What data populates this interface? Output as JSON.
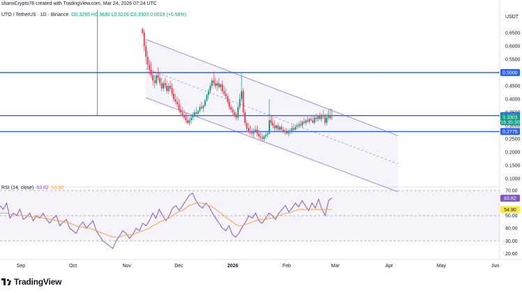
{
  "header": {
    "author_line": "shamiCrypto78 created with TradingView.com, Mar 24, 2026 07:24 UTC",
    "symbol": "UTO / TetherUS · 1D · Binance",
    "ohlc": "O0.3285  H0.3630  L0.3226  C0.3303  0.0019 (+0.58%)"
  },
  "rsi_label": {
    "name": "RSI (14, close)",
    "rsi_value": "63.82",
    "ma_value": "54.90"
  },
  "brand": {
    "name": "TradingView"
  },
  "colors": {
    "up": "#089981",
    "down": "#f23645",
    "hline": "#2962ff",
    "channel": "#9c8fd8",
    "rsi": "#7e57c2",
    "rsi_ma": "#f2a541"
  },
  "chart_data": [
    {
      "type": "candlestick",
      "title": "",
      "price_axis": {
        "unit": "USDT",
        "ticks": [
          "0.6500",
          "0.6000",
          "0.5500",
          "0.4500",
          "0.4000",
          "0.3500",
          "0.3000",
          "0.2500",
          "0.2000",
          "0.1500",
          "0.1000"
        ]
      },
      "time_axis": {
        "ticks": [
          "Sep",
          "Oct",
          "Nov",
          "Dec",
          "2026",
          "Feb",
          "Mar",
          "Apr",
          "May",
          "Jun"
        ]
      },
      "horizontal_levels": [
        {
          "price": 0.5,
          "label": "0.5000"
        },
        {
          "price": 0.3376,
          "label": "0.3376"
        },
        {
          "price": 0.2775,
          "label": "0.2775"
        }
      ],
      "last_price": {
        "value": "0.3303",
        "countdown": "16:35:30"
      },
      "descending_channel": {
        "upper": [
          [
            "2025-11-12",
            0.625
          ],
          [
            "2026-04-06",
            0.262
          ]
        ],
        "lower": [
          [
            "2025-11-12",
            0.405
          ],
          [
            "2026-04-06",
            0.05
          ]
        ]
      },
      "ohlc": [
        [
          "2025-11-10",
          0.665,
          0.67,
          0.64,
          0.65
        ],
        [
          "2025-11-11",
          0.65,
          0.66,
          0.58,
          0.6
        ],
        [
          "2025-11-12",
          0.6,
          0.62,
          0.53,
          0.56
        ],
        [
          "2025-11-13",
          0.56,
          0.58,
          0.51,
          0.53
        ],
        [
          "2025-11-14",
          0.53,
          0.55,
          0.49,
          0.51
        ],
        [
          "2025-11-15",
          0.51,
          0.54,
          0.48,
          0.49
        ],
        [
          "2025-11-16",
          0.49,
          0.51,
          0.45,
          0.47
        ],
        [
          "2025-11-17",
          0.47,
          0.49,
          0.44,
          0.46
        ],
        [
          "2025-11-18",
          0.46,
          0.5,
          0.45,
          0.49
        ],
        [
          "2025-11-19",
          0.49,
          0.52,
          0.47,
          0.48
        ],
        [
          "2025-11-20",
          0.48,
          0.5,
          0.45,
          0.46
        ],
        [
          "2025-11-21",
          0.46,
          0.48,
          0.43,
          0.44
        ],
        [
          "2025-11-22",
          0.44,
          0.47,
          0.43,
          0.46
        ],
        [
          "2025-11-23",
          0.46,
          0.48,
          0.44,
          0.45
        ],
        [
          "2025-11-24",
          0.45,
          0.47,
          0.42,
          0.43
        ],
        [
          "2025-11-25",
          0.43,
          0.46,
          0.42,
          0.45
        ],
        [
          "2025-11-26",
          0.45,
          0.47,
          0.43,
          0.44
        ],
        [
          "2025-11-27",
          0.44,
          0.46,
          0.41,
          0.42
        ],
        [
          "2025-11-28",
          0.42,
          0.44,
          0.39,
          0.4
        ],
        [
          "2025-11-29",
          0.4,
          0.42,
          0.38,
          0.39
        ],
        [
          "2025-11-30",
          0.39,
          0.41,
          0.37,
          0.38
        ],
        [
          "2025-12-01",
          0.38,
          0.4,
          0.35,
          0.36
        ],
        [
          "2025-12-02",
          0.36,
          0.38,
          0.34,
          0.35
        ],
        [
          "2025-12-03",
          0.35,
          0.37,
          0.33,
          0.34
        ],
        [
          "2025-12-04",
          0.34,
          0.36,
          0.32,
          0.33
        ],
        [
          "2025-12-05",
          0.33,
          0.35,
          0.31,
          0.32
        ],
        [
          "2025-12-06",
          0.32,
          0.34,
          0.305,
          0.31
        ],
        [
          "2025-12-07",
          0.31,
          0.33,
          0.3,
          0.32
        ],
        [
          "2025-12-08",
          0.32,
          0.34,
          0.305,
          0.33
        ],
        [
          "2025-12-09",
          0.33,
          0.35,
          0.32,
          0.34
        ],
        [
          "2025-12-10",
          0.34,
          0.36,
          0.33,
          0.35
        ],
        [
          "2025-12-11",
          0.35,
          0.37,
          0.34,
          0.345
        ],
        [
          "2025-12-12",
          0.345,
          0.36,
          0.33,
          0.355
        ],
        [
          "2025-12-13",
          0.355,
          0.38,
          0.35,
          0.37
        ],
        [
          "2025-12-14",
          0.37,
          0.39,
          0.36,
          0.365
        ],
        [
          "2025-12-15",
          0.365,
          0.38,
          0.35,
          0.375
        ],
        [
          "2025-12-16",
          0.375,
          0.4,
          0.37,
          0.395
        ],
        [
          "2025-12-17",
          0.395,
          0.42,
          0.39,
          0.415
        ],
        [
          "2025-12-18",
          0.415,
          0.44,
          0.4,
          0.43
        ],
        [
          "2025-12-19",
          0.43,
          0.46,
          0.42,
          0.45
        ],
        [
          "2025-12-20",
          0.45,
          0.48,
          0.44,
          0.47
        ],
        [
          "2025-12-21",
          0.47,
          0.5,
          0.45,
          0.46
        ],
        [
          "2025-12-22",
          0.46,
          0.48,
          0.44,
          0.45
        ],
        [
          "2025-12-23",
          0.45,
          0.47,
          0.43,
          0.46
        ],
        [
          "2025-12-24",
          0.46,
          0.48,
          0.44,
          0.445
        ],
        [
          "2025-12-25",
          0.445,
          0.46,
          0.43,
          0.455
        ],
        [
          "2025-12-26",
          0.455,
          0.47,
          0.42,
          0.43
        ],
        [
          "2025-12-27",
          0.43,
          0.45,
          0.41,
          0.42
        ],
        [
          "2025-12-28",
          0.42,
          0.44,
          0.4,
          0.41
        ],
        [
          "2025-12-29",
          0.41,
          0.42,
          0.38,
          0.39
        ],
        [
          "2025-12-30",
          0.39,
          0.4,
          0.36,
          0.37
        ],
        [
          "2025-12-31",
          0.37,
          0.38,
          0.35,
          0.36
        ],
        [
          "2026-01-01",
          0.36,
          0.37,
          0.34,
          0.35
        ],
        [
          "2026-01-02",
          0.35,
          0.36,
          0.33,
          0.335
        ],
        [
          "2026-01-03",
          0.335,
          0.35,
          0.32,
          0.33
        ],
        [
          "2026-01-04",
          0.33,
          0.38,
          0.32,
          0.37
        ],
        [
          "2026-01-05",
          0.37,
          0.42,
          0.36,
          0.4
        ],
        [
          "2026-01-06",
          0.4,
          0.5,
          0.39,
          0.43
        ],
        [
          "2026-01-07",
          0.43,
          0.44,
          0.34,
          0.35
        ],
        [
          "2026-01-08",
          0.35,
          0.36,
          0.3,
          0.31
        ],
        [
          "2026-01-09",
          0.31,
          0.32,
          0.28,
          0.29
        ],
        [
          "2026-01-10",
          0.29,
          0.31,
          0.27,
          0.28
        ],
        [
          "2026-01-11",
          0.28,
          0.3,
          0.265,
          0.275
        ],
        [
          "2026-01-12",
          0.275,
          0.29,
          0.26,
          0.27
        ],
        [
          "2026-01-13",
          0.27,
          0.29,
          0.255,
          0.28
        ],
        [
          "2026-01-14",
          0.28,
          0.3,
          0.27,
          0.285
        ],
        [
          "2026-01-15",
          0.285,
          0.3,
          0.26,
          0.27
        ],
        [
          "2026-01-16",
          0.27,
          0.285,
          0.25,
          0.26
        ],
        [
          "2026-01-17",
          0.26,
          0.275,
          0.245,
          0.255
        ],
        [
          "2026-01-18",
          0.255,
          0.27,
          0.24,
          0.25
        ],
        [
          "2026-01-19",
          0.25,
          0.265,
          0.24,
          0.26
        ],
        [
          "2026-01-20",
          0.26,
          0.275,
          0.25,
          0.265
        ],
        [
          "2026-01-21",
          0.265,
          0.28,
          0.255,
          0.27
        ],
        [
          "2026-01-22",
          0.27,
          0.4,
          0.265,
          0.32
        ],
        [
          "2026-01-23",
          0.32,
          0.34,
          0.3,
          0.31
        ],
        [
          "2026-01-24",
          0.31,
          0.33,
          0.29,
          0.3
        ],
        [
          "2026-01-25",
          0.3,
          0.32,
          0.28,
          0.29
        ],
        [
          "2026-01-26",
          0.29,
          0.305,
          0.275,
          0.3
        ],
        [
          "2026-01-27",
          0.3,
          0.31,
          0.28,
          0.285
        ],
        [
          "2026-01-28",
          0.285,
          0.3,
          0.275,
          0.295
        ],
        [
          "2026-01-29",
          0.295,
          0.305,
          0.28,
          0.285
        ],
        [
          "2026-01-30",
          0.285,
          0.295,
          0.27,
          0.275
        ],
        [
          "2026-01-31",
          0.275,
          0.29,
          0.265,
          0.28
        ],
        [
          "2026-02-01",
          0.28,
          0.29,
          0.265,
          0.27
        ],
        [
          "2026-02-02",
          0.27,
          0.285,
          0.26,
          0.275
        ],
        [
          "2026-02-03",
          0.275,
          0.29,
          0.265,
          0.28
        ],
        [
          "2026-02-04",
          0.28,
          0.3,
          0.27,
          0.29
        ],
        [
          "2026-02-05",
          0.29,
          0.305,
          0.275,
          0.285
        ],
        [
          "2026-02-06",
          0.285,
          0.3,
          0.275,
          0.295
        ],
        [
          "2026-02-07",
          0.295,
          0.31,
          0.285,
          0.3
        ],
        [
          "2026-02-08",
          0.3,
          0.315,
          0.29,
          0.305
        ],
        [
          "2026-02-09",
          0.305,
          0.32,
          0.295,
          0.3
        ],
        [
          "2026-02-10",
          0.3,
          0.32,
          0.29,
          0.315
        ],
        [
          "2026-02-11",
          0.315,
          0.33,
          0.305,
          0.31
        ],
        [
          "2026-02-12",
          0.31,
          0.325,
          0.3,
          0.32
        ],
        [
          "2026-02-13",
          0.32,
          0.335,
          0.31,
          0.315
        ],
        [
          "2026-02-14",
          0.315,
          0.33,
          0.305,
          0.325
        ],
        [
          "2026-02-15",
          0.325,
          0.34,
          0.315,
          0.32
        ],
        [
          "2026-02-16",
          0.32,
          0.335,
          0.31,
          0.31
        ],
        [
          "2026-02-17",
          0.31,
          0.34,
          0.305,
          0.33
        ],
        [
          "2026-02-18",
          0.33,
          0.345,
          0.315,
          0.325
        ],
        [
          "2026-02-19",
          0.325,
          0.34,
          0.315,
          0.335
        ],
        [
          "2026-02-20",
          0.335,
          0.35,
          0.32,
          0.325
        ],
        [
          "2026-02-21",
          0.325,
          0.345,
          0.315,
          0.34
        ],
        [
          "2026-02-22",
          0.34,
          0.36,
          0.325,
          0.335
        ],
        [
          "2026-02-23",
          0.335,
          0.345,
          0.3,
          0.31
        ],
        [
          "2026-02-24",
          0.31,
          0.345,
          0.3,
          0.33
        ],
        [
          "2026-02-25",
          0.33,
          0.36,
          0.32,
          0.34
        ],
        [
          "2026-02-26",
          0.34,
          0.365,
          0.322,
          0.328
        ],
        [
          "2026-02-27",
          0.328,
          0.363,
          0.322,
          0.33
        ]
      ]
    },
    {
      "type": "line",
      "title": "RSI (14, close)",
      "yaxis_ticks": [
        "70.00",
        "50.00",
        "40.00",
        "30.00",
        "20.00"
      ],
      "levels": {
        "upper": 70,
        "middle": 50,
        "lower": 30
      },
      "current": {
        "rsi": "63.82",
        "ma": "54.90"
      },
      "series": [
        {
          "name": "RSI",
          "values": [
            58,
            55,
            60,
            48,
            52,
            50,
            55,
            47,
            49,
            52,
            46,
            50,
            48,
            52,
            47,
            44,
            48,
            50,
            42,
            45,
            47,
            40,
            38,
            36,
            42,
            45,
            40,
            43,
            46,
            38,
            34,
            30,
            28,
            26,
            24,
            30,
            34,
            38,
            36,
            32,
            35,
            40,
            38,
            44,
            42,
            46,
            52,
            48,
            55,
            50,
            46,
            50,
            56,
            58,
            54,
            58,
            62,
            66,
            68,
            62,
            58,
            56,
            60,
            57,
            52,
            48,
            44,
            40,
            38,
            42,
            35,
            33,
            36,
            41,
            45,
            50,
            48,
            52,
            46,
            44,
            48,
            52,
            50,
            47,
            52,
            55,
            58,
            53,
            56,
            60,
            57,
            62,
            58,
            54,
            60,
            56,
            63,
            55,
            50,
            62,
            64
          ]
        },
        {
          "name": "MA",
          "values": [
            52,
            52,
            52,
            51,
            51,
            51,
            50,
            50,
            50,
            49,
            49,
            49,
            49,
            48,
            48,
            47,
            47,
            46,
            46,
            45,
            45,
            44,
            43,
            42,
            41,
            41,
            40,
            40,
            39,
            38,
            37,
            36,
            35,
            34,
            33,
            33,
            33,
            34,
            35,
            35,
            35,
            36,
            37,
            38,
            39,
            40,
            42,
            43,
            45,
            46,
            47,
            48,
            50,
            52,
            53,
            54,
            56,
            58,
            59,
            60,
            60,
            60,
            59,
            58,
            57,
            55,
            53,
            51,
            49,
            47,
            45,
            43,
            42,
            42,
            43,
            44,
            45,
            46,
            47,
            47,
            47,
            48,
            48,
            49,
            50,
            51,
            52,
            52,
            53,
            54,
            55,
            55,
            55,
            55,
            55,
            55,
            55,
            55,
            55,
            55,
            54.9
          ]
        }
      ]
    }
  ]
}
